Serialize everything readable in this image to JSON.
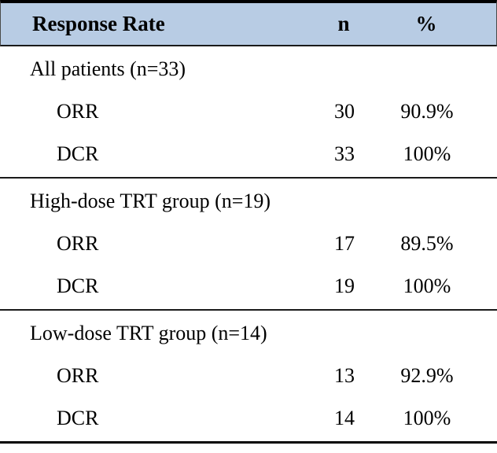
{
  "table": {
    "header": {
      "label": "Response Rate",
      "n": "n",
      "pct": "%"
    },
    "sections": [
      {
        "group": "All patients (n=33)",
        "rows": [
          {
            "label": "ORR",
            "n": "30",
            "pct": "90.9%"
          },
          {
            "label": "DCR",
            "n": "33",
            "pct": "100%"
          }
        ]
      },
      {
        "group": "High-dose TRT group (n=19)",
        "rows": [
          {
            "label": "ORR",
            "n": "17",
            "pct": "89.5%"
          },
          {
            "label": "DCR",
            "n": "19",
            "pct": "100%"
          }
        ]
      },
      {
        "group": "Low-dose TRT group (n=14)",
        "rows": [
          {
            "label": "ORR",
            "n": "13",
            "pct": "92.9%"
          },
          {
            "label": "DCR",
            "n": "14",
            "pct": "100%"
          }
        ]
      }
    ]
  },
  "colors": {
    "header_bg": "#b8cce4",
    "border": "#000000",
    "text": "#000000"
  },
  "chart_data": {
    "type": "table",
    "title": "Response Rate",
    "columns": [
      "Response Rate",
      "n",
      "%"
    ],
    "rows": [
      [
        "All patients (n=33)",
        "",
        ""
      ],
      [
        "ORR",
        30,
        "90.9%"
      ],
      [
        "DCR",
        33,
        "100%"
      ],
      [
        "High-dose TRT group (n=19)",
        "",
        ""
      ],
      [
        "ORR",
        17,
        "89.5%"
      ],
      [
        "DCR",
        19,
        "100%"
      ],
      [
        "Low-dose TRT group (n=14)",
        "",
        ""
      ],
      [
        "ORR",
        13,
        "92.9%"
      ],
      [
        "DCR",
        14,
        "100%"
      ]
    ]
  }
}
